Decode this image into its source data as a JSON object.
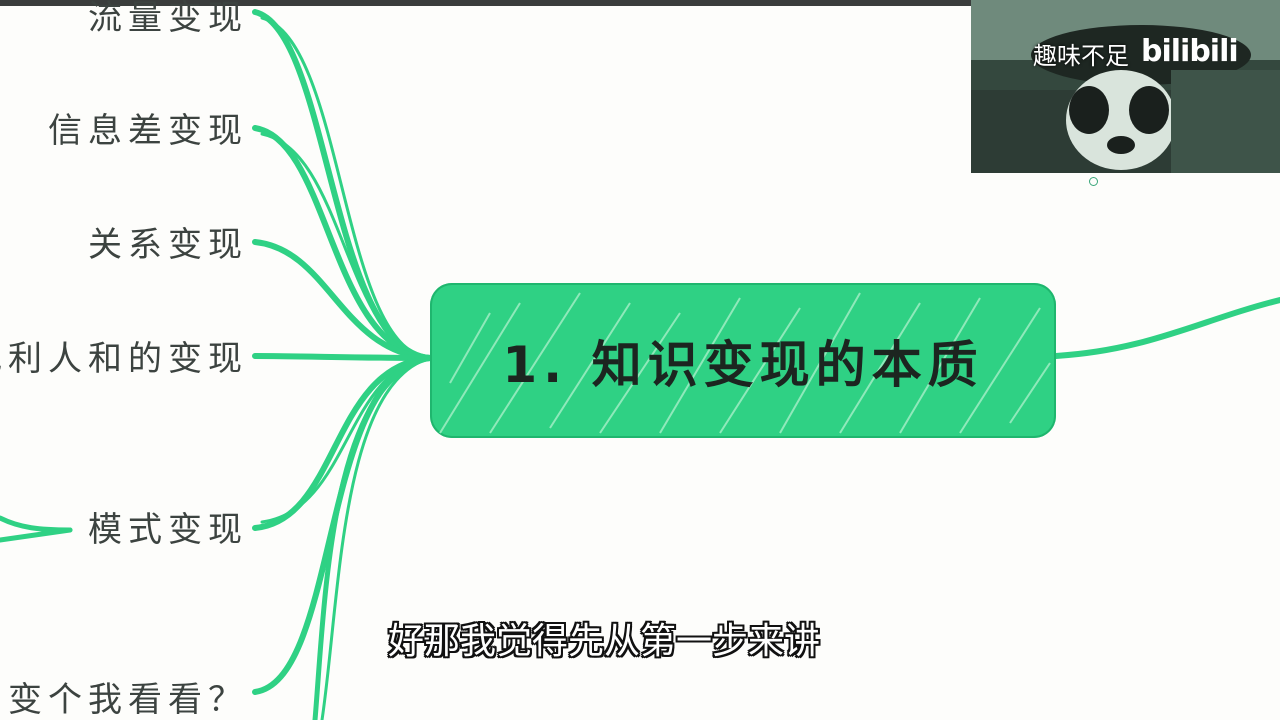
{
  "mindmap": {
    "central_topic": "1. 知识变现的本质",
    "branches": [
      {
        "label": "流量变现"
      },
      {
        "label": "信息差变现"
      },
      {
        "label": "关系变现"
      },
      {
        "label": "地利人和的变现"
      },
      {
        "label": "模式变现"
      },
      {
        "label": "变个我看看？"
      }
    ]
  },
  "video_overlay": {
    "caption": "趣味不足",
    "logo": "bilibili"
  },
  "subtitle": "好那我觉得先从第一步来讲",
  "colors": {
    "branch_line": "#2fd184",
    "central_fill": "#2fd184",
    "label_text": "#3c4340",
    "background": "#fdfdfb"
  }
}
